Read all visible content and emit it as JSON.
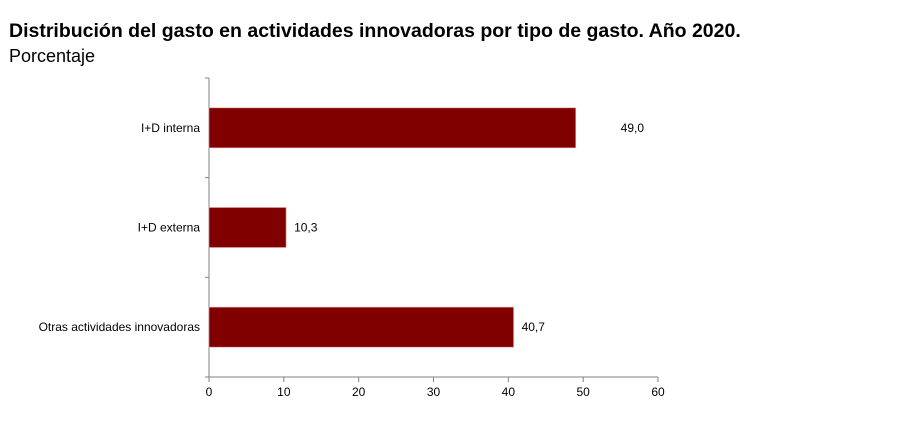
{
  "chart_data": {
    "type": "bar",
    "orientation": "horizontal",
    "title": "Distribución del gasto en actividades innovadoras por tipo de gasto. Año 2020.",
    "subtitle": "Porcentaje",
    "categories": [
      "I+D interna",
      "I+D externa",
      "Otras actividades innovadoras"
    ],
    "values": [
      49.0,
      10.3,
      40.7
    ],
    "value_labels": [
      "49,0",
      "10,3",
      "40,7"
    ],
    "xlim": [
      0,
      60
    ],
    "xticks": [
      0,
      10,
      20,
      30,
      40,
      50,
      60
    ],
    "xlabel": "",
    "ylabel": "",
    "grid": false,
    "bar_color": "#800000"
  }
}
